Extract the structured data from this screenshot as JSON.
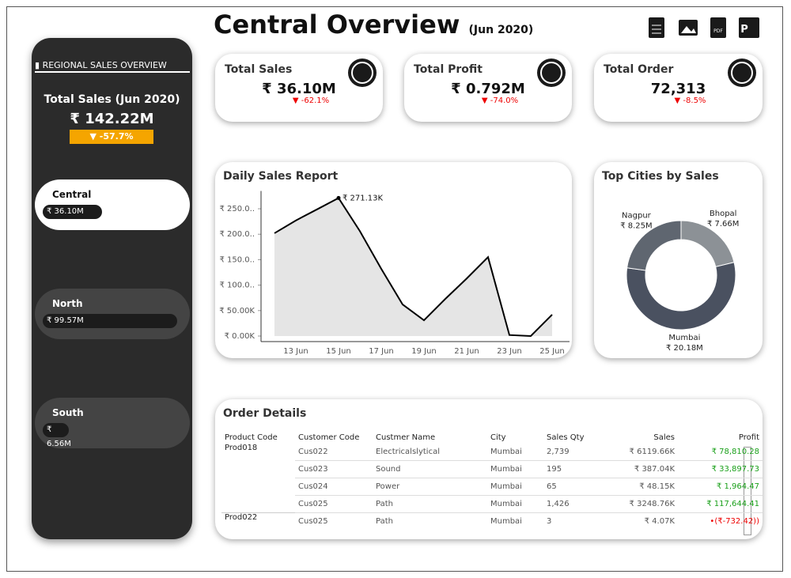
{
  "header": {
    "title": "Central Overview",
    "subtitle": "(Jun 2020)"
  },
  "sidebar": {
    "title": "REGIONAL SALES OVERVIEW",
    "total_label": "Total Sales (Jun 2020)",
    "total": "₹ 142.22M",
    "change": "▼ -57.7%",
    "regions": [
      {
        "name": "Central",
        "value": "₹ 36.10M"
      },
      {
        "name": "North",
        "value": "₹ 99.57M"
      },
      {
        "name": "South",
        "value": "₹ 6.56M"
      }
    ]
  },
  "kpis": [
    {
      "label": "Total Sales",
      "value": "₹ 36.10M",
      "change": "▼ -62.1%"
    },
    {
      "label": "Total Profit",
      "value": "₹ 0.792M",
      "change": "▼ -74.0%"
    },
    {
      "label": "Total Order",
      "value": "72,313",
      "change": "▼ -8.5%"
    }
  ],
  "daily_sales": {
    "type": "line",
    "title": "Daily Sales Report",
    "color": "#000000",
    "fill": "#e5e5e5",
    "categories": [
      null,
      "13 Jun",
      null,
      "15 Jun",
      null,
      "17 Jun",
      null,
      "19 Jun",
      null,
      "21 Jun",
      null,
      "23 Jun",
      null,
      "25 Jun"
    ],
    "values": [
      202,
      227,
      249,
      271.13,
      206,
      132,
      62,
      31,
      73,
      113,
      155,
      2,
      0,
      42
    ],
    "peak_label": "₹ 271.13K",
    "ylim": [
      0,
      285
    ],
    "yticks": [
      {
        "value": 0,
        "label": "₹ 0.00K"
      },
      {
        "value": 50,
        "label": "₹ 50.00K"
      },
      {
        "value": 100,
        "label": "₹ 100.0.."
      },
      {
        "value": 150,
        "label": "₹ 150.0.."
      },
      {
        "value": 200,
        "label": "₹ 200.0.."
      },
      {
        "value": 250,
        "label": "₹ 250.0.."
      }
    ]
  },
  "top_cities": {
    "type": "pie",
    "title": "Top Cities by Sales",
    "categories": [
      "Bhopal",
      "Mumbai",
      "Nagpur"
    ],
    "values": [
      7.66,
      20.18,
      8.25
    ],
    "value_labels": [
      "₹ 7.66M",
      "₹ 20.18M",
      "₹ 8.25M"
    ],
    "colors": [
      "#8c9196",
      "#4a5160",
      "#5f6670"
    ]
  },
  "orders": {
    "title": "Order Details",
    "columns": [
      "Product Code",
      "Customer Code",
      "Custmer Name",
      "City",
      "Sales Qty",
      "Sales",
      "Profit"
    ],
    "rows": [
      [
        "Prod018",
        "Cus022",
        "Electricalslytical",
        "Mumbai",
        "2,739",
        "₹ 6119.66K",
        "₹ 78,810.28"
      ],
      [
        "",
        "Cus023",
        "Sound",
        "Mumbai",
        "195",
        "₹ 387.04K",
        "₹ 33,897.73"
      ],
      [
        "",
        "Cus024",
        "Power",
        "Mumbai",
        "65",
        "₹ 48.15K",
        "₹ 1,964.47"
      ],
      [
        "",
        "Cus025",
        "Path",
        "Mumbai",
        "1,426",
        "₹ 3248.76K",
        "₹ 117,644.41"
      ],
      [
        "Prod022",
        "Cus025",
        "Path",
        "Mumbai",
        "3",
        "₹ 4.07K",
        "•(₹-732.42))"
      ]
    ]
  }
}
